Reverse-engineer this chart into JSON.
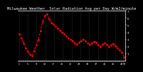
{
  "title": "Milwaukee Weather  Solar Radiation Avg per Day W/m2/minute",
  "values": [
    3.8,
    3.2,
    2.5,
    1.8,
    1.3,
    0.9,
    0.7,
    1.4,
    2.2,
    3.0,
    4.2,
    5.5,
    6.3,
    6.5,
    5.8,
    5.3,
    5.1,
    4.8,
    4.5,
    4.3,
    4.0,
    3.8,
    3.5,
    3.2,
    3.0,
    2.8,
    2.5,
    2.3,
    2.6,
    2.8,
    3.0,
    2.8,
    2.5,
    2.3,
    2.5,
    2.7,
    2.6,
    2.2,
    2.0,
    2.3,
    2.5,
    2.3,
    2.0,
    2.2,
    2.4,
    2.1,
    1.8,
    1.5,
    1.2,
    0.5
  ],
  "line_color": "#ff0000",
  "bg_color": "#000000",
  "plot_bg_color": "#000000",
  "grid_color": "#666666",
  "tick_color": "#ffffff",
  "title_color": "#ffffff",
  "ylim": [
    0,
    7
  ],
  "yticks": [
    1,
    2,
    3,
    4,
    5,
    6,
    7
  ],
  "title_fontsize": 3.8,
  "tick_fontsize": 2.8,
  "linewidth": 0.7,
  "markersize": 1.8,
  "num_vgrid": 13
}
